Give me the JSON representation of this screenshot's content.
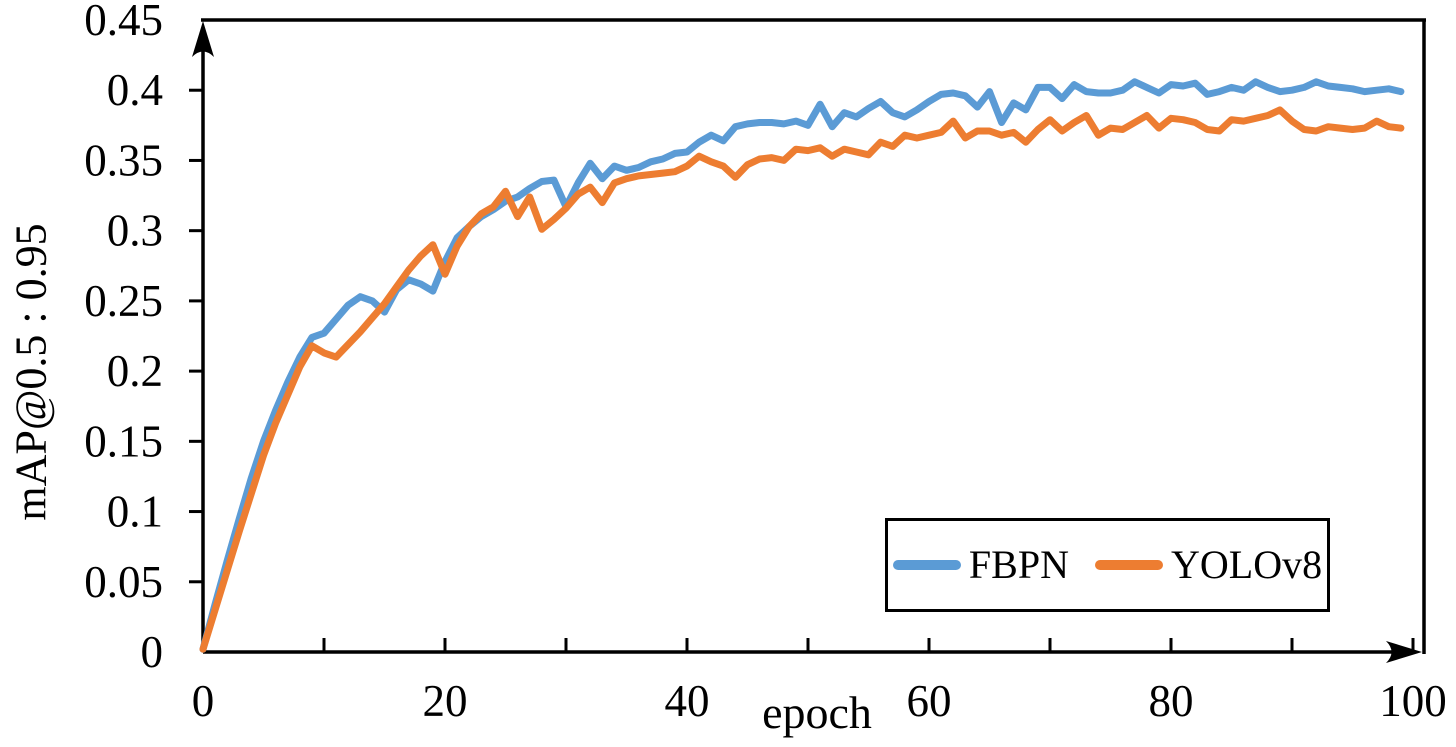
{
  "chart_data": {
    "type": "line",
    "title": "",
    "xlabel": "epoch",
    "ylabel": "mAP@0.5 : 0.95",
    "xlim": [
      0,
      100
    ],
    "ylim": [
      0,
      0.45
    ],
    "grid": "off",
    "legend_position": "inside-lower-right",
    "frame": "top-and-right-border, arrowed left and bottom axes",
    "x_ticks_minor": [
      10,
      20,
      30,
      40,
      50,
      60,
      70,
      80,
      90,
      100
    ],
    "x_ticks_labeled": [
      0,
      20,
      40,
      60,
      80,
      100
    ],
    "x_tick_labels": [
      "0",
      "20",
      "40",
      "60",
      "80",
      "100"
    ],
    "y_ticks": [
      0,
      0.05,
      0.1,
      0.15,
      0.2,
      0.25,
      0.3,
      0.35,
      0.4,
      0.45
    ],
    "y_tick_labels": [
      "0",
      "0.05",
      "0.1",
      "0.15",
      "0.2",
      "0.25",
      "0.3",
      "0.35",
      "0.4",
      "0.45"
    ],
    "x": "epochs 0..99 (one point per epoch)",
    "series": [
      {
        "name": "FBPN",
        "color": "#5B9BD5",
        "values": [
          0.002,
          0.034,
          0.065,
          0.095,
          0.124,
          0.15,
          0.172,
          0.192,
          0.21,
          0.224,
          0.227,
          0.237,
          0.247,
          0.253,
          0.25,
          0.242,
          0.258,
          0.265,
          0.262,
          0.257,
          0.278,
          0.295,
          0.303,
          0.31,
          0.315,
          0.321,
          0.324,
          0.33,
          0.335,
          0.336,
          0.317,
          0.334,
          0.348,
          0.337,
          0.346,
          0.343,
          0.345,
          0.349,
          0.351,
          0.355,
          0.356,
          0.363,
          0.368,
          0.364,
          0.374,
          0.376,
          0.377,
          0.377,
          0.376,
          0.378,
          0.375,
          0.39,
          0.374,
          0.384,
          0.381,
          0.387,
          0.392,
          0.384,
          0.381,
          0.386,
          0.392,
          0.397,
          0.398,
          0.396,
          0.388,
          0.399,
          0.377,
          0.391,
          0.386,
          0.402,
          0.402,
          0.394,
          0.404,
          0.399,
          0.398,
          0.398,
          0.4,
          0.406,
          0.402,
          0.398,
          0.404,
          0.403,
          0.405,
          0.397,
          0.399,
          0.402,
          0.4,
          0.406,
          0.402,
          0.399,
          0.4,
          0.402,
          0.406,
          0.403,
          0.402,
          0.401,
          0.399,
          0.4,
          0.401,
          0.399
        ]
      },
      {
        "name": "YOLOv8",
        "color": "#ED7D31",
        "values": [
          0.002,
          0.03,
          0.058,
          0.086,
          0.113,
          0.14,
          0.163,
          0.183,
          0.203,
          0.218,
          0.213,
          0.21,
          0.219,
          0.228,
          0.238,
          0.248,
          0.26,
          0.272,
          0.282,
          0.29,
          0.269,
          0.289,
          0.303,
          0.312,
          0.317,
          0.328,
          0.31,
          0.324,
          0.301,
          0.308,
          0.316,
          0.326,
          0.331,
          0.32,
          0.334,
          0.337,
          0.339,
          0.34,
          0.341,
          0.342,
          0.346,
          0.353,
          0.349,
          0.346,
          0.338,
          0.347,
          0.351,
          0.352,
          0.35,
          0.358,
          0.357,
          0.359,
          0.353,
          0.358,
          0.356,
          0.354,
          0.363,
          0.36,
          0.368,
          0.366,
          0.368,
          0.37,
          0.378,
          0.366,
          0.371,
          0.371,
          0.368,
          0.37,
          0.363,
          0.372,
          0.379,
          0.371,
          0.377,
          0.382,
          0.368,
          0.373,
          0.372,
          0.377,
          0.382,
          0.373,
          0.38,
          0.379,
          0.377,
          0.372,
          0.371,
          0.379,
          0.378,
          0.38,
          0.382,
          0.386,
          0.378,
          0.372,
          0.371,
          0.374,
          0.373,
          0.372,
          0.373,
          0.378,
          0.374,
          0.373
        ]
      }
    ]
  }
}
